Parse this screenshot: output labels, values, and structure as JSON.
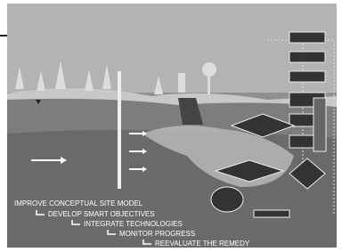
{
  "steps": [
    "IMPROVE CONCEPTUAL SITE MODEL",
    "DEVELOP SMART OBJECTIVES",
    "INTEGRATE TECHNOLOGIES",
    "MONITOR PROGRESS",
    "REEVALUATE THE REMEDY"
  ]
}
